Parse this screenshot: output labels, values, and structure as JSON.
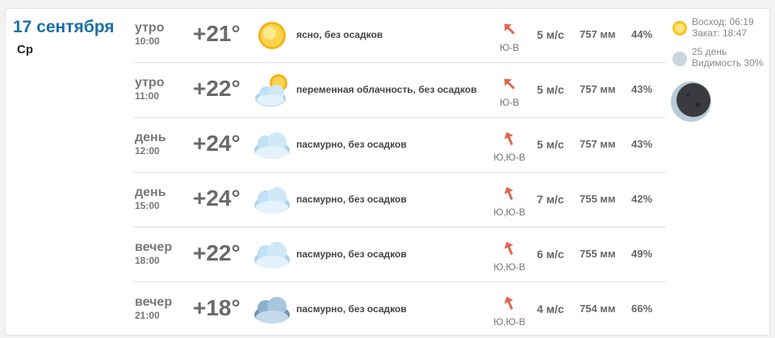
{
  "day": {
    "date": "17 сентября",
    "weekday": "Ср"
  },
  "rows": [
    {
      "period": "утро",
      "time": "10:00",
      "temp": "+21°",
      "icon": "sun-icon",
      "desc": "ясно, без осадков",
      "wind_dir": "Ю-В",
      "wind_deg": 135,
      "wind": "5 м/с",
      "pressure": "757 мм",
      "humidity": "44%"
    },
    {
      "period": "утро",
      "time": "11:00",
      "temp": "+22°",
      "icon": "partly-cloudy-icon",
      "desc": "переменная облачность, без осадков",
      "wind_dir": "Ю-В",
      "wind_deg": 135,
      "wind": "5 м/с",
      "pressure": "757 мм",
      "humidity": "43%"
    },
    {
      "period": "день",
      "time": "12:00",
      "temp": "+24°",
      "icon": "cloud-icon",
      "desc": "пасмурно, без осадков",
      "wind_dir": "Ю,Ю-В",
      "wind_deg": 157,
      "wind": "5 м/с",
      "pressure": "757 мм",
      "humidity": "43%"
    },
    {
      "period": "день",
      "time": "15:00",
      "temp": "+24°",
      "icon": "cloud-icon",
      "desc": "пасмурно, без осадков",
      "wind_dir": "Ю,Ю-В",
      "wind_deg": 157,
      "wind": "7 м/с",
      "pressure": "755 мм",
      "humidity": "42%"
    },
    {
      "period": "вечер",
      "time": "18:00",
      "temp": "+22°",
      "icon": "cloud-icon",
      "desc": "пасмурно, без осадков",
      "wind_dir": "Ю,Ю-В",
      "wind_deg": 157,
      "wind": "6 м/с",
      "pressure": "755 мм",
      "humidity": "49%"
    },
    {
      "period": "вечер",
      "time": "21:00",
      "temp": "+18°",
      "icon": "dark-cloud-icon",
      "desc": "пасмурно, без осадков",
      "wind_dir": "Ю,Ю-В",
      "wind_deg": 157,
      "wind": "4 м/с",
      "pressure": "754 мм",
      "humidity": "66%"
    }
  ],
  "side": {
    "sunrise": "Восход: 06:19",
    "sunset": "Закат: 18:47",
    "moon_day": "25 день",
    "visibility": "Видимость 30%"
  },
  "colors": {
    "date": "#1a6fa8",
    "arrow": "#e0674f"
  }
}
